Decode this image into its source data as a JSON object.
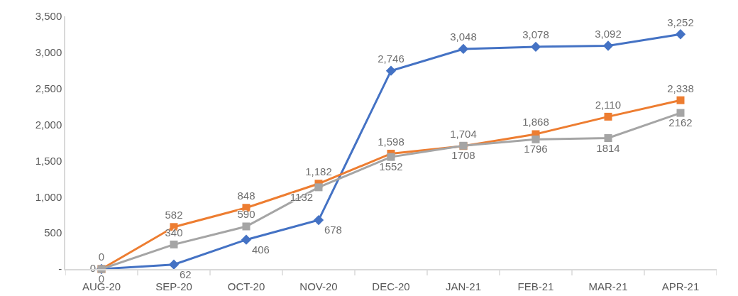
{
  "chart_data": {
    "type": "line",
    "categories": [
      "AUG-20",
      "SEP-20",
      "OCT-20",
      "NOV-20",
      "DEC-20",
      "JAN-21",
      "FEB-21",
      "MAR-21",
      "APR-21"
    ],
    "series": [
      {
        "color": "#4472c4",
        "marker": "diamond",
        "values": [
          0,
          62,
          406,
          678,
          2746,
          3048,
          3078,
          3092,
          3252
        ],
        "value_labels": [
          "0",
          "62",
          "406",
          "678",
          "2,746",
          "3,048",
          "3,078",
          "3,092",
          "3,252"
        ]
      },
      {
        "color": "#ed7d31",
        "marker": "square",
        "values": [
          0,
          582,
          848,
          1182,
          1598,
          1704,
          1868,
          2110,
          2338
        ],
        "value_labels": [
          "0",
          "582",
          "848",
          "1,182",
          "1,598",
          "1,704",
          "1,868",
          "2,110",
          "2,338"
        ]
      },
      {
        "color": "#a5a5a5",
        "marker": "square",
        "values": [
          0,
          340,
          590,
          1132,
          1552,
          1708,
          1796,
          1814,
          2162
        ],
        "value_labels": [
          "0",
          "340",
          "590",
          "1132",
          "1552",
          "1708",
          "1796",
          "1814",
          "2162"
        ]
      }
    ],
    "ylim": [
      0,
      3500
    ],
    "yticks": [
      {
        "value": 0,
        "label": "-"
      },
      {
        "value": 500,
        "label": "500"
      },
      {
        "value": 1000,
        "label": "1,000"
      },
      {
        "value": 1500,
        "label": "1,500"
      },
      {
        "value": 2000,
        "label": "2,000"
      },
      {
        "value": 2500,
        "label": "2,500"
      },
      {
        "value": 3000,
        "label": "3,000"
      },
      {
        "value": 3500,
        "label": "3,500"
      }
    ],
    "grid": false,
    "line_style": "solid"
  }
}
